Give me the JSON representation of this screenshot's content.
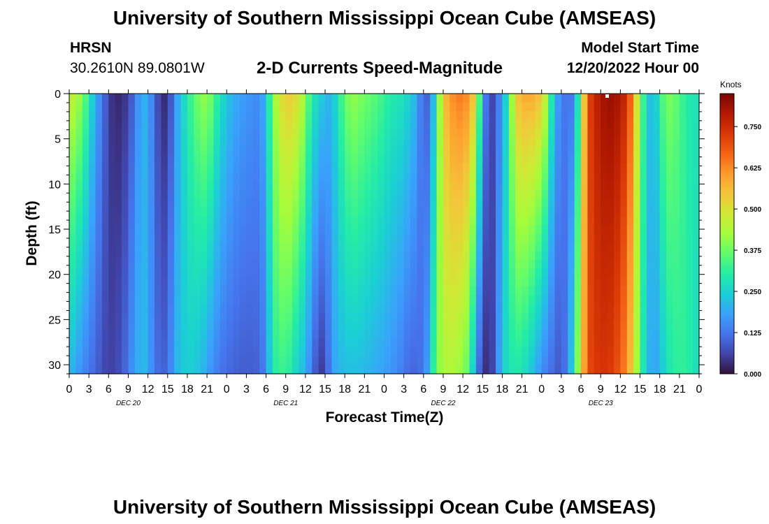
{
  "header": {
    "title": "University of Southern Mississippi Ocean Cube (AMSEAS)",
    "station": "HRSN",
    "coords": "30.2610N  89.0801W",
    "chart_title": "2-D Currents Speed-Magnitude",
    "model_start_label": "Model Start Time",
    "model_start_value": "12/20/2022 Hour 00"
  },
  "footer": {
    "title": "University of Southern Mississippi Ocean Cube (AMSEAS)"
  },
  "colors": {
    "colormap": [
      "#30123b",
      "#4145ab",
      "#4675ed",
      "#39a2fc",
      "#1bcfd4",
      "#24eca6",
      "#61fc6c",
      "#a4fc3b",
      "#d1e834",
      "#f3c63a",
      "#fe9b2d",
      "#f36315",
      "#d93806",
      "#b11901",
      "#7a0402"
    ]
  },
  "chart_data": {
    "type": "heatmap",
    "title": "2-D Currents Speed-Magnitude",
    "xlabel": "Forecast Time(Z)",
    "ylabel": "Depth (ft)",
    "x_ticks": [
      "0",
      "3",
      "6",
      "9",
      "12",
      "15",
      "18",
      "21",
      "0",
      "3",
      "6",
      "9",
      "12",
      "15",
      "18",
      "21",
      "0",
      "3",
      "6",
      "9",
      "12",
      "15",
      "18",
      "21",
      "0",
      "3",
      "6",
      "9",
      "12",
      "15",
      "18",
      "21",
      "0"
    ],
    "day_labels": [
      "DEC 20",
      "DEC 21",
      "DEC 22",
      "DEC 23"
    ],
    "y_ticks": [
      0,
      5,
      10,
      15,
      20,
      25,
      30
    ],
    "ylim": [
      0,
      31
    ],
    "xlim_hours": [
      0,
      96
    ],
    "colorbar": {
      "label": "Knots",
      "ticks": [
        "0.000",
        "0.125",
        "0.250",
        "0.375",
        "0.500",
        "0.625",
        "0.750"
      ],
      "range": [
        0,
        0.85
      ]
    },
    "surface_profile_knots": [
      [
        0,
        0.48
      ],
      [
        2,
        0.4
      ],
      [
        4,
        0.2
      ],
      [
        6,
        0.06
      ],
      [
        7,
        0.02
      ],
      [
        9,
        0.05
      ],
      [
        11,
        0.2
      ],
      [
        12,
        0.2
      ],
      [
        13,
        0.1
      ],
      [
        14,
        0.04
      ],
      [
        15,
        0.02
      ],
      [
        16,
        0.15
      ],
      [
        18,
        0.3
      ],
      [
        20,
        0.4
      ],
      [
        21,
        0.42
      ],
      [
        23,
        0.28
      ],
      [
        25,
        0.2
      ],
      [
        27,
        0.17
      ],
      [
        29,
        0.15
      ],
      [
        30,
        0.22
      ],
      [
        31,
        0.4
      ],
      [
        33,
        0.55
      ],
      [
        35,
        0.5
      ],
      [
        37,
        0.3
      ],
      [
        39,
        0.22
      ],
      [
        40,
        0.2
      ],
      [
        41,
        0.3
      ],
      [
        43,
        0.42
      ],
      [
        45,
        0.38
      ],
      [
        47,
        0.35
      ],
      [
        49,
        0.3
      ],
      [
        51,
        0.28
      ],
      [
        53,
        0.2
      ],
      [
        54,
        0.08
      ],
      [
        55,
        0.12
      ],
      [
        56,
        0.3
      ],
      [
        57,
        0.55
      ],
      [
        59,
        0.65
      ],
      [
        61,
        0.62
      ],
      [
        62,
        0.5
      ],
      [
        63,
        0.2
      ],
      [
        64,
        0.05
      ],
      [
        65,
        0.08
      ],
      [
        67,
        0.3
      ],
      [
        68,
        0.55
      ],
      [
        70,
        0.6
      ],
      [
        72,
        0.55
      ],
      [
        73,
        0.4
      ],
      [
        74,
        0.2
      ],
      [
        75,
        0.15
      ],
      [
        76,
        0.1
      ],
      [
        77,
        0.15
      ],
      [
        78,
        0.4
      ],
      [
        79,
        0.7
      ],
      [
        81,
        0.8
      ],
      [
        83,
        0.82
      ],
      [
        85,
        0.75
      ],
      [
        86,
        0.6
      ],
      [
        87,
        0.4
      ],
      [
        88,
        0.25
      ],
      [
        89,
        0.2
      ],
      [
        90,
        0.3
      ],
      [
        91,
        0.4
      ],
      [
        93,
        0.35
      ],
      [
        94,
        0.3
      ],
      [
        96,
        0.28
      ]
    ],
    "bottom_profile_knots": [
      [
        0,
        0.22
      ],
      [
        2,
        0.15
      ],
      [
        4,
        0.1
      ],
      [
        6,
        0.05
      ],
      [
        8,
        0.08
      ],
      [
        10,
        0.18
      ],
      [
        11,
        0.22
      ],
      [
        12,
        0.2
      ],
      [
        13,
        0.12
      ],
      [
        14,
        0.1
      ],
      [
        15,
        0.1
      ],
      [
        16,
        0.2
      ],
      [
        18,
        0.25
      ],
      [
        20,
        0.22
      ],
      [
        21,
        0.18
      ],
      [
        23,
        0.12
      ],
      [
        25,
        0.1
      ],
      [
        27,
        0.09
      ],
      [
        29,
        0.1
      ],
      [
        30,
        0.15
      ],
      [
        31,
        0.3
      ],
      [
        33,
        0.33
      ],
      [
        34,
        0.28
      ],
      [
        36,
        0.2
      ],
      [
        38,
        0.05
      ],
      [
        39,
        0.05
      ],
      [
        40,
        0.18
      ],
      [
        42,
        0.22
      ],
      [
        44,
        0.22
      ],
      [
        46,
        0.2
      ],
      [
        48,
        0.18
      ],
      [
        50,
        0.15
      ],
      [
        52,
        0.1
      ],
      [
        54,
        0.12
      ],
      [
        55,
        0.22
      ],
      [
        56,
        0.4
      ],
      [
        58,
        0.45
      ],
      [
        60,
        0.4
      ],
      [
        61,
        0.35
      ],
      [
        62,
        0.15
      ],
      [
        63,
        0.05
      ],
      [
        64,
        0.02
      ],
      [
        65,
        0.1
      ],
      [
        66,
        0.25
      ],
      [
        68,
        0.3
      ],
      [
        70,
        0.25
      ],
      [
        72,
        0.15
      ],
      [
        74,
        0.1
      ],
      [
        75,
        0.08
      ],
      [
        76,
        0.15
      ],
      [
        77,
        0.3
      ],
      [
        78,
        0.5
      ],
      [
        79,
        0.7
      ],
      [
        81,
        0.74
      ],
      [
        83,
        0.72
      ],
      [
        85,
        0.62
      ],
      [
        86,
        0.5
      ],
      [
        87,
        0.35
      ],
      [
        88,
        0.22
      ],
      [
        89,
        0.18
      ],
      [
        90,
        0.2
      ],
      [
        91,
        0.28
      ],
      [
        93,
        0.32
      ],
      [
        95,
        0.3
      ],
      [
        96,
        0.25
      ]
    ]
  }
}
